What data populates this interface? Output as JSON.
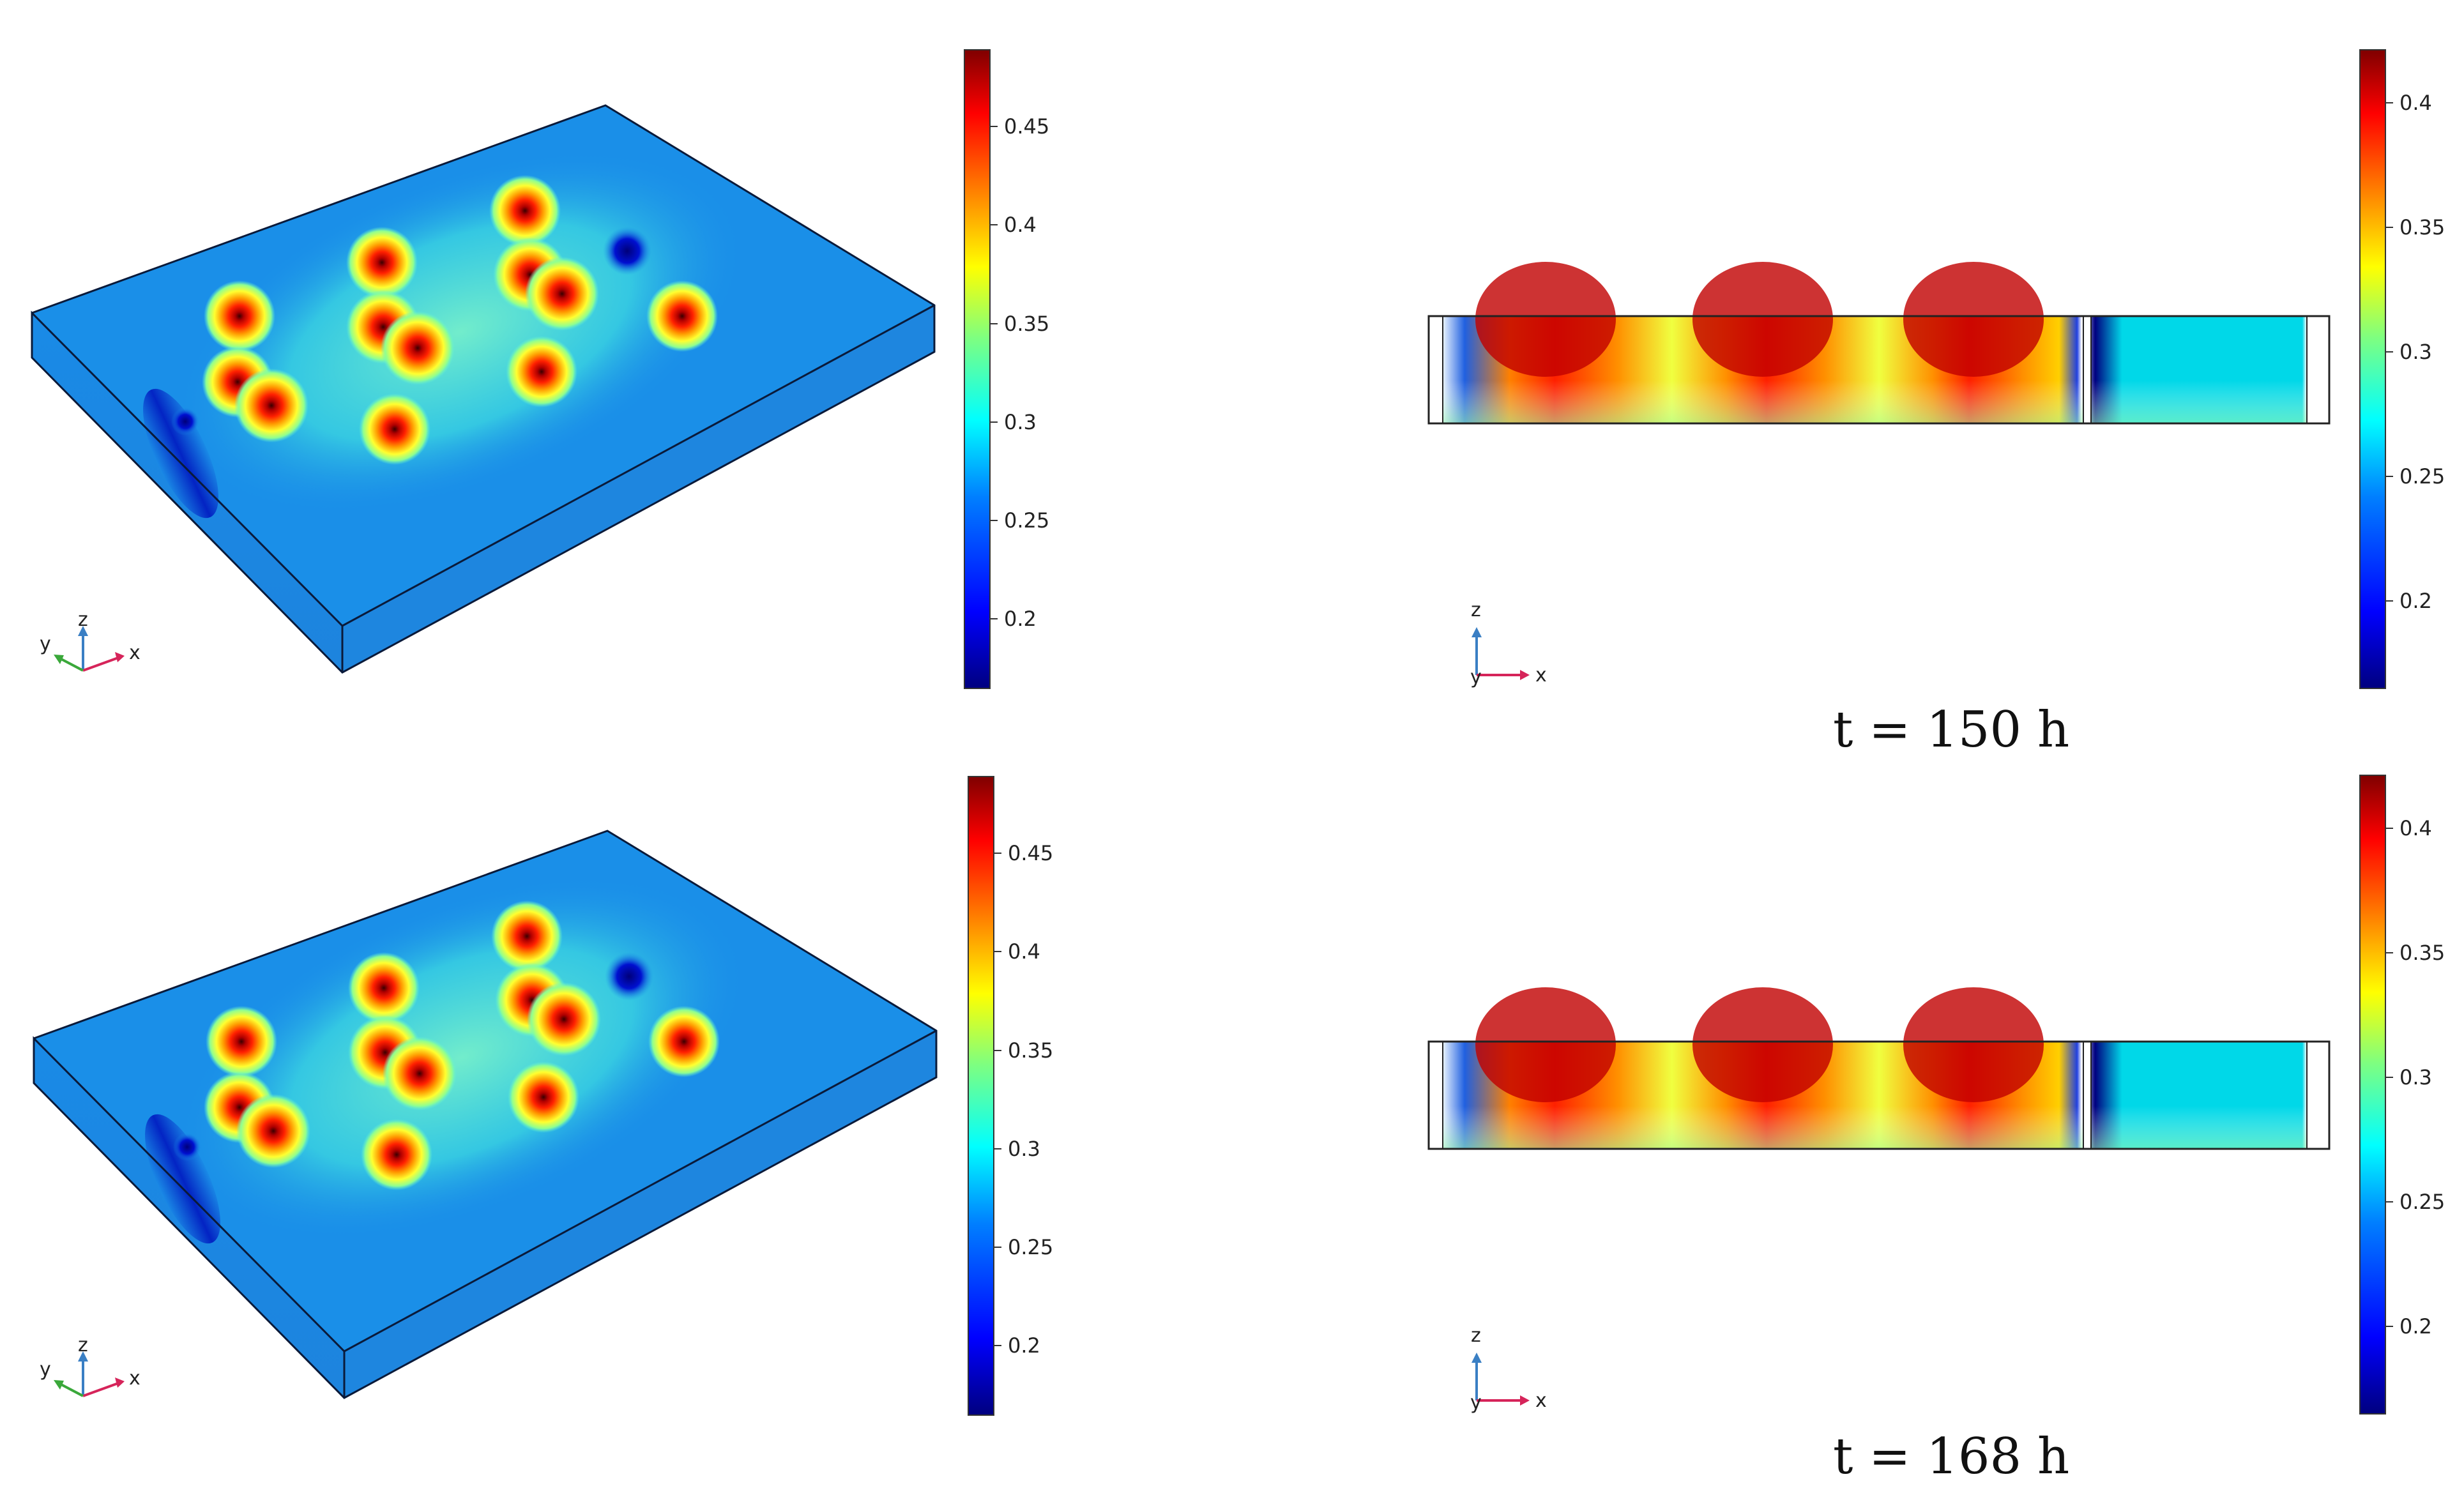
{
  "panels": [
    {
      "id": "top",
      "caption": "t = 150 h",
      "left_colorbar": {
        "ticks": [
          "0.45",
          "0.4",
          "0.35",
          "0.3",
          "0.25",
          "0.2"
        ]
      },
      "right_colorbar": {
        "ticks": [
          "0.4",
          "0.35",
          "0.3",
          "0.25",
          "0.2"
        ]
      },
      "triad_3d": {
        "x": "x",
        "y": "y",
        "z": "z"
      },
      "triad_2d": {
        "x": "x",
        "y": "y",
        "z": "z"
      }
    },
    {
      "id": "bottom",
      "caption": "t = 168 h",
      "left_colorbar": {
        "ticks": [
          "0.45",
          "0.4",
          "0.35",
          "0.3",
          "0.25",
          "0.2"
        ]
      },
      "right_colorbar": {
        "ticks": [
          "0.4",
          "0.35",
          "0.3",
          "0.25",
          "0.2"
        ]
      },
      "triad_3d": {
        "x": "x",
        "y": "y",
        "z": "z"
      },
      "triad_2d": {
        "x": "x",
        "y": "y",
        "z": "z"
      }
    }
  ],
  "colors": {
    "colormap": [
      "#00007f",
      "#0000ff",
      "#007fff",
      "#00ffff",
      "#7fff7f",
      "#ffff00",
      "#ff7f00",
      "#ff0000",
      "#7f0000"
    ],
    "background_field": "#1a8fe8",
    "box_side": "#1f86e0",
    "triad_x": "#d6245a",
    "triad_y": "#3aa83a",
    "triad_z": "#3a7fc4"
  }
}
